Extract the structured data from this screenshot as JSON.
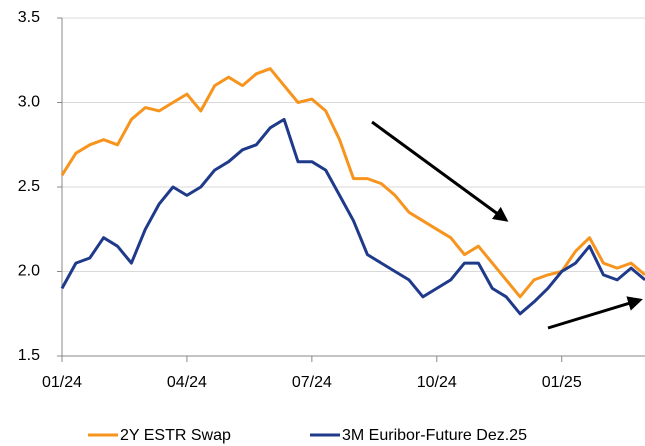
{
  "chart_data": {
    "type": "line",
    "categories": [
      "01/24",
      null,
      null,
      null,
      null,
      null,
      null,
      null,
      null,
      "04/24",
      null,
      null,
      null,
      null,
      null,
      null,
      null,
      null,
      "07/24",
      null,
      null,
      null,
      null,
      null,
      null,
      null,
      null,
      "10/24",
      null,
      null,
      null,
      null,
      null,
      null,
      null,
      null,
      "01/25",
      null,
      null,
      null,
      null,
      null,
      null
    ],
    "series": [
      {
        "name": "2Y ESTR Swap",
        "color": "#f7941d",
        "values": [
          2.57,
          2.7,
          2.75,
          2.78,
          2.75,
          2.9,
          2.97,
          2.95,
          3.0,
          3.05,
          2.95,
          3.1,
          3.15,
          3.1,
          3.17,
          3.2,
          3.1,
          3.0,
          3.02,
          2.95,
          2.78,
          2.55,
          2.55,
          2.52,
          2.45,
          2.35,
          2.3,
          2.25,
          2.2,
          2.1,
          2.15,
          2.05,
          1.95,
          1.85,
          1.95,
          1.98,
          2.0,
          2.12,
          2.2,
          2.05,
          2.02,
          2.05,
          1.98
        ]
      },
      {
        "name": "3M Euribor-Future Dez.25",
        "color": "#1f3a8a",
        "values": [
          1.9,
          2.05,
          2.08,
          2.2,
          2.15,
          2.05,
          2.25,
          2.4,
          2.5,
          2.45,
          2.5,
          2.6,
          2.65,
          2.72,
          2.75,
          2.85,
          2.9,
          2.65,
          2.65,
          2.6,
          2.45,
          2.3,
          2.1,
          2.05,
          2.0,
          1.95,
          1.85,
          1.9,
          1.95,
          2.05,
          2.05,
          1.9,
          1.85,
          1.75,
          1.82,
          1.9,
          2.0,
          2.05,
          2.15,
          1.98,
          1.95,
          2.02,
          1.95
        ]
      }
    ],
    "ylim": [
      1.5,
      3.5
    ],
    "yticks": [
      1.5,
      {
        "value": 2,
        "label": "2.0"
      },
      2.5,
      {
        "value": 3,
        "label": "3.0"
      },
      3.5
    ],
    "grid": true,
    "legend": "bottom"
  }
}
